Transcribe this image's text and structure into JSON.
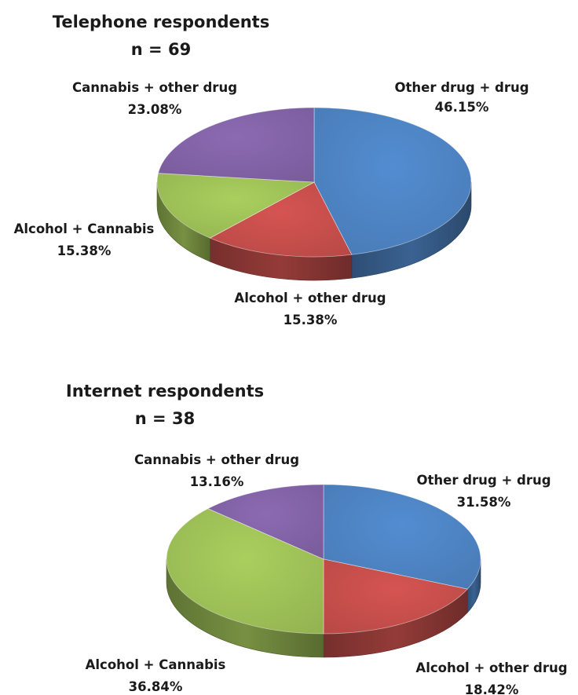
{
  "chart_data": [
    {
      "type": "pie",
      "title": "Telephone respondents",
      "subtitle": "n = 69",
      "slices": [
        {
          "label": "Other drug + drug",
          "value": 46.15,
          "value_label": "46.15%",
          "color": "#4a7ebb"
        },
        {
          "label": "Alcohol + other drug",
          "value": 15.38,
          "value_label": "15.38%",
          "color": "#be4b48"
        },
        {
          "label": "Alcohol + Cannabis",
          "value": 15.38,
          "value_label": "15.38%",
          "color": "#98b954"
        },
        {
          "label": "Cannabis + other drug",
          "value": 23.08,
          "value_label": "23.08%",
          "color": "#7d5fa0"
        }
      ]
    },
    {
      "type": "pie",
      "title": "Internet respondents",
      "subtitle": "n = 38",
      "slices": [
        {
          "label": "Other drug + drug",
          "value": 31.58,
          "value_label": "31.58%",
          "color": "#4a7ebb"
        },
        {
          "label": "Alcohol + other drug",
          "value": 18.42,
          "value_label": "18.42%",
          "color": "#be4b48"
        },
        {
          "label": "Alcohol + Cannabis",
          "value": 36.84,
          "value_label": "36.84%",
          "color": "#98b954"
        },
        {
          "label": "Cannabis + other drug",
          "value": 13.16,
          "value_label": "13.16%",
          "color": "#7d5fa0"
        }
      ]
    }
  ]
}
